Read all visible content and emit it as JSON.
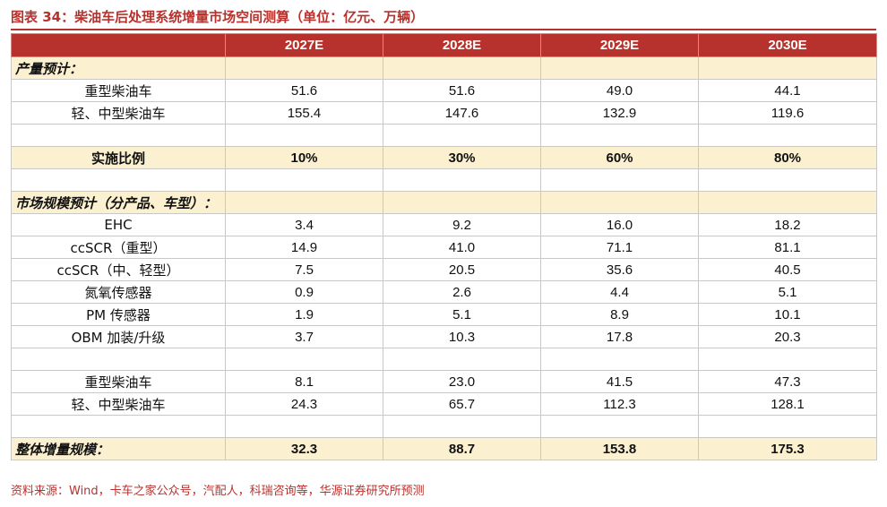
{
  "title": "图表 34：柴油车后处理系统增量市场空间测算（单位：亿元、万辆）",
  "columns": [
    "",
    "2027E",
    "2028E",
    "2029E",
    "2030E"
  ],
  "sections": {
    "production_label": "产量预计：",
    "market_label": "市场规模预计（分产品、车型）：",
    "total_label": "整体增量规模："
  },
  "rows": {
    "heavy_prod": {
      "label": "重型柴油车",
      "values": [
        "51.6",
        "51.6",
        "49.0",
        "44.1"
      ]
    },
    "light_prod": {
      "label": "轻、中型柴油车",
      "values": [
        "155.4",
        "147.6",
        "132.9",
        "119.6"
      ]
    },
    "ratio": {
      "label": "实施比例",
      "values": [
        "10%",
        "30%",
        "60%",
        "80%"
      ]
    },
    "ehc": {
      "label": "EHC",
      "values": [
        "3.4",
        "9.2",
        "16.0",
        "18.2"
      ]
    },
    "ccscr_heavy": {
      "label": "ccSCR（重型）",
      "values": [
        "14.9",
        "41.0",
        "71.1",
        "81.1"
      ]
    },
    "ccscr_light": {
      "label": "ccSCR（中、轻型）",
      "values": [
        "7.5",
        "20.5",
        "35.6",
        "40.5"
      ]
    },
    "nox": {
      "label": "氮氧传感器",
      "values": [
        "0.9",
        "2.6",
        "4.4",
        "5.1"
      ]
    },
    "pm": {
      "label": "PM 传感器",
      "values": [
        "1.9",
        "5.1",
        "8.9",
        "10.1"
      ]
    },
    "obm": {
      "label": "OBM 加装/升级",
      "values": [
        "3.7",
        "10.3",
        "17.8",
        "20.3"
      ]
    },
    "heavy_mkt": {
      "label": "重型柴油车",
      "values": [
        "8.1",
        "23.0",
        "41.5",
        "47.3"
      ]
    },
    "light_mkt": {
      "label": "轻、中型柴油车",
      "values": [
        "24.3",
        "65.7",
        "112.3",
        "128.1"
      ]
    },
    "total": {
      "values": [
        "32.3",
        "88.7",
        "153.8",
        "175.3"
      ]
    }
  },
  "source": "资料来源：Wind，卡车之家公众号，汽配人，科瑞咨询等，华源证券研究所预测"
}
